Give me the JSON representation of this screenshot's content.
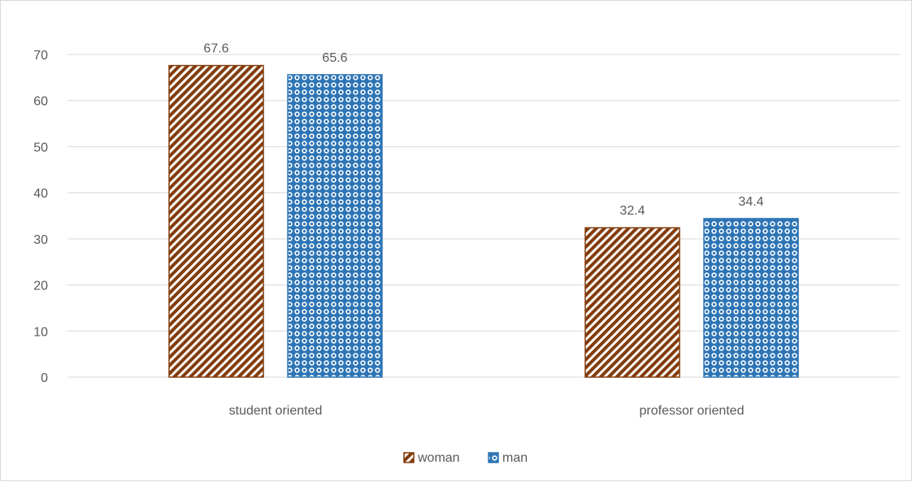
{
  "chart_data": {
    "type": "bar",
    "categories": [
      "student oriented",
      "professor oriented"
    ],
    "series": [
      {
        "name": "woman",
        "values": [
          67.6,
          32.4
        ],
        "color": "#843c0c",
        "pattern": "diagonal-stripes"
      },
      {
        "name": "man",
        "values": [
          65.6,
          34.4
        ],
        "color": "#2e75b6",
        "pattern": "dots"
      }
    ],
    "ylim": [
      0,
      70
    ],
    "yticks": [
      0,
      10,
      20,
      30,
      40,
      50,
      60,
      70
    ],
    "grid": true,
    "legend": "bottom-center",
    "data_labels": true
  }
}
